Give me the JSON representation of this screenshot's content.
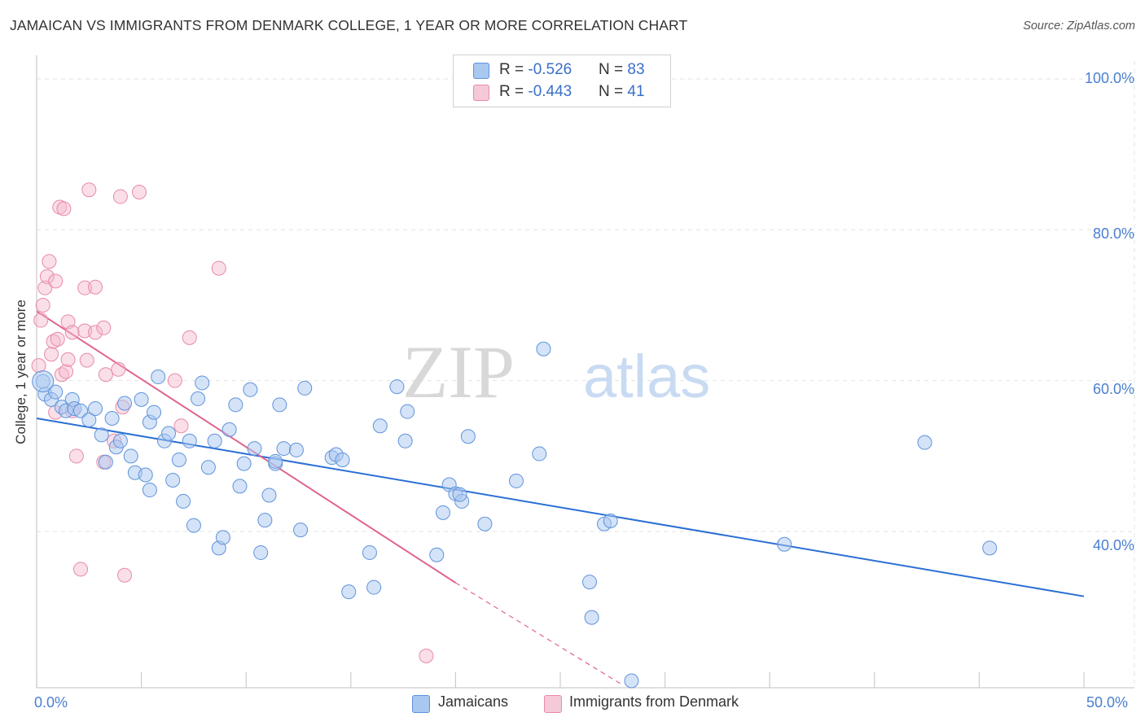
{
  "title": "JAMAICAN VS IMMIGRANTS FROM DENMARK COLLEGE, 1 YEAR OR MORE CORRELATION CHART",
  "source": "Source: ZipAtlas.com",
  "watermark": {
    "zip": "ZIP",
    "atlas": "atlas"
  },
  "colors": {
    "blue_fill": "#a9c8f0",
    "blue_stroke": "#5f93dc",
    "blue_line": "#2a6fd4",
    "pink_fill": "#f5b9cb",
    "pink_stroke": "#e88aa8",
    "pink_line": "#e0648f",
    "tick_text": "#4a7fd0",
    "grid": "#e3e3e3"
  },
  "legend": {
    "rows": [
      {
        "r_label": "R = ",
        "r_value": "-0.526",
        "n_label": "N = ",
        "n_value": "83"
      },
      {
        "r_label": "R = ",
        "r_value": "-0.443",
        "n_label": "N = ",
        "n_value": "41"
      }
    ]
  },
  "chart_data": {
    "type": "scatter",
    "title": "JAMAICAN VS IMMIGRANTS FROM DENMARK COLLEGE, 1 YEAR OR MORE CORRELATION CHART",
    "xlabel": "",
    "ylabel": "College, 1 year or more",
    "xlim": [
      0,
      50
    ],
    "ylim": [
      20,
      102
    ],
    "x_tick_labels": [
      "0.0%",
      "50.0%"
    ],
    "y_ticks": [
      40,
      60,
      80,
      100
    ],
    "y_tick_labels": [
      "40.0%",
      "60.0%",
      "80.0%",
      "100.0%"
    ],
    "series": [
      {
        "name": "Jamaicans",
        "R": -0.526,
        "N": 83,
        "trend": {
          "x0": 0,
          "y0": 55.0,
          "x1": 50,
          "y1": 31.4
        },
        "points": [
          [
            0.3,
            59.9
          ],
          [
            0.4,
            58.2
          ],
          [
            0.7,
            57.5
          ],
          [
            0.9,
            58.5
          ],
          [
            1.2,
            56.5
          ],
          [
            1.4,
            56.0
          ],
          [
            1.7,
            57.5
          ],
          [
            1.8,
            56.3
          ],
          [
            2.1,
            56.0
          ],
          [
            2.5,
            54.8
          ],
          [
            2.8,
            56.3
          ],
          [
            3.1,
            52.8
          ],
          [
            3.3,
            49.2
          ],
          [
            3.6,
            55.0
          ],
          [
            3.8,
            51.2
          ],
          [
            4.0,
            52.0
          ],
          [
            4.2,
            57.0
          ],
          [
            4.5,
            50.0
          ],
          [
            4.7,
            47.8
          ],
          [
            5.0,
            57.5
          ],
          [
            5.2,
            47.5
          ],
          [
            5.4,
            54.5
          ],
          [
            5.6,
            55.8
          ],
          [
            5.8,
            60.5
          ],
          [
            6.1,
            52.0
          ],
          [
            6.3,
            53.0
          ],
          [
            6.5,
            46.8
          ],
          [
            6.8,
            49.5
          ],
          [
            7.0,
            44.0
          ],
          [
            7.3,
            52.0
          ],
          [
            7.5,
            40.8
          ],
          [
            7.7,
            57.6
          ],
          [
            7.9,
            59.7
          ],
          [
            8.2,
            48.5
          ],
          [
            8.5,
            52.0
          ],
          [
            8.7,
            37.8
          ],
          [
            8.9,
            39.2
          ],
          [
            9.2,
            53.5
          ],
          [
            9.5,
            56.8
          ],
          [
            9.7,
            46.0
          ],
          [
            9.9,
            49.0
          ],
          [
            10.2,
            58.8
          ],
          [
            10.4,
            51.0
          ],
          [
            10.7,
            37.2
          ],
          [
            10.9,
            41.5
          ],
          [
            11.1,
            44.8
          ],
          [
            11.4,
            49.0
          ],
          [
            11.6,
            56.8
          ],
          [
            11.8,
            51.0
          ],
          [
            12.4,
            50.8
          ],
          [
            12.6,
            40.2
          ],
          [
            12.8,
            59.0
          ],
          [
            14.1,
            49.8
          ],
          [
            14.3,
            50.2
          ],
          [
            14.6,
            49.5
          ],
          [
            14.9,
            32.0
          ],
          [
            15.9,
            37.2
          ],
          [
            16.1,
            32.6
          ],
          [
            16.4,
            54.0
          ],
          [
            17.2,
            59.2
          ],
          [
            17.6,
            52.0
          ],
          [
            17.7,
            55.9
          ],
          [
            19.1,
            36.9
          ],
          [
            19.4,
            42.5
          ],
          [
            19.7,
            46.2
          ],
          [
            20.0,
            45.0
          ],
          [
            20.3,
            44.0
          ],
          [
            20.6,
            52.6
          ],
          [
            21.4,
            41.0
          ],
          [
            22.9,
            46.7
          ],
          [
            24.0,
            50.3
          ],
          [
            24.2,
            64.2
          ],
          [
            26.4,
            33.3
          ],
          [
            26.5,
            28.6
          ],
          [
            27.1,
            41.0
          ],
          [
            27.4,
            41.4
          ],
          [
            35.7,
            38.3
          ],
          [
            42.4,
            51.8
          ],
          [
            45.5,
            37.8
          ],
          [
            28.4,
            20.2
          ],
          [
            20.2,
            44.9
          ],
          [
            11.4,
            49.3
          ],
          [
            5.4,
            45.5
          ]
        ]
      },
      {
        "name": "Immigrants from Denmark",
        "R": -0.443,
        "N": 41,
        "trend": {
          "x0": 0,
          "y0": 69.2,
          "x1": 20,
          "y1": 33.2
        },
        "trend_dashed": {
          "x0": 20,
          "y0": 33.2,
          "x1": 28.0,
          "y1": 19.6
        },
        "points": [
          [
            0.1,
            62.0
          ],
          [
            0.2,
            68.0
          ],
          [
            0.3,
            70.0
          ],
          [
            0.4,
            72.3
          ],
          [
            0.5,
            73.8
          ],
          [
            0.6,
            75.8
          ],
          [
            0.7,
            63.5
          ],
          [
            0.8,
            65.2
          ],
          [
            0.9,
            73.2
          ],
          [
            0.9,
            55.8
          ],
          [
            1.0,
            65.5
          ],
          [
            1.1,
            83.0
          ],
          [
            1.2,
            60.8
          ],
          [
            1.3,
            82.8
          ],
          [
            1.4,
            61.2
          ],
          [
            1.5,
            62.8
          ],
          [
            1.5,
            67.8
          ],
          [
            1.7,
            56.0
          ],
          [
            1.7,
            66.4
          ],
          [
            1.9,
            50.0
          ],
          [
            2.1,
            35.0
          ],
          [
            2.3,
            66.6
          ],
          [
            2.3,
            72.3
          ],
          [
            2.4,
            62.7
          ],
          [
            2.5,
            85.3
          ],
          [
            2.8,
            66.4
          ],
          [
            2.8,
            72.4
          ],
          [
            3.2,
            49.2
          ],
          [
            3.2,
            67.0
          ],
          [
            3.3,
            60.8
          ],
          [
            3.7,
            52.0
          ],
          [
            3.9,
            61.5
          ],
          [
            4.0,
            84.4
          ],
          [
            4.1,
            56.5
          ],
          [
            4.2,
            34.2
          ],
          [
            4.9,
            85.0
          ],
          [
            6.6,
            60.0
          ],
          [
            6.9,
            54.0
          ],
          [
            7.3,
            65.7
          ],
          [
            8.7,
            74.9
          ],
          [
            18.6,
            23.5
          ]
        ]
      }
    ]
  },
  "bottom_legend": {
    "items": [
      "Jamaicans",
      "Immigrants from Denmark"
    ]
  }
}
